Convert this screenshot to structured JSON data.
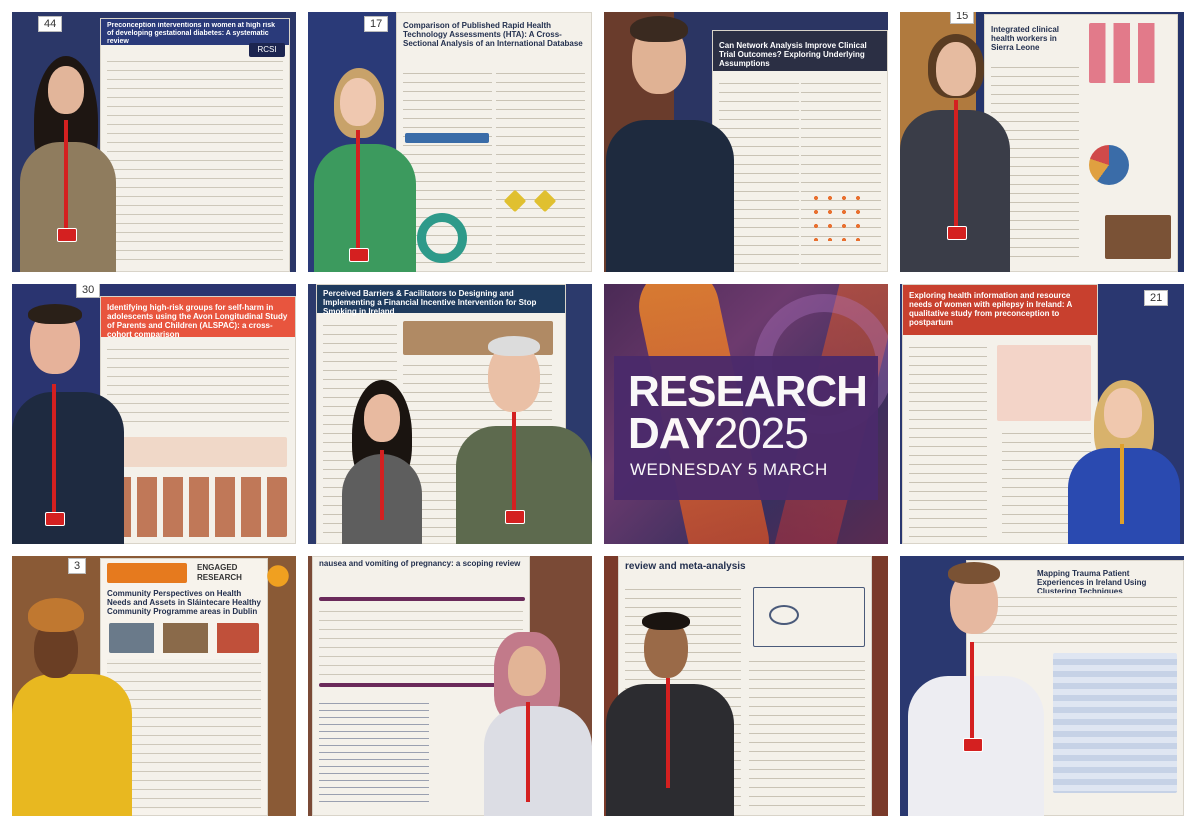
{
  "collage": {
    "event": {
      "title_line1": "RESEARCH",
      "title_line2_bold": "DAY",
      "title_line2_year": "2025",
      "date": "WEDNESDAY 5 MARCH"
    },
    "tiles": [
      {
        "board_number": "44",
        "poster_title": "Preconception interventions in women at high risk of developing gestational diabetes: A systematic review",
        "logo": "RCSI"
      },
      {
        "board_number": "17",
        "poster_title": "Comparison of Published Rapid Health Technology Assessments (HTA): A Cross-Sectional Analysis of an International Database"
      },
      {
        "board_number": "",
        "poster_title": "Can Network Analysis Improve Clinical Trial Outcomes? Exploring Underlying Assumptions"
      },
      {
        "board_number": "15",
        "poster_title": "Integrated clinical health workers in Sierra Leone"
      },
      {
        "board_number": "30",
        "poster_title": "Identifying high-risk groups for self-harm in adolescents using the Avon Longitudinal Study of Parents and Children (ALSPAC): a cross-cohort comparison"
      },
      {
        "board_number": "",
        "poster_title": "Perceived Barriers & Facilitators to Designing and Implementing a Financial Incentive Intervention for Stop Smoking in Ireland"
      },
      {
        "board_number": "",
        "poster_title": ""
      },
      {
        "board_number": "21",
        "poster_title": "Exploring health information and resource needs of women with epilepsy in Ireland: A qualitative study from preconception to postpartum"
      },
      {
        "board_number": "3",
        "poster_title": "Community Perspectives on Health Needs and Assets in Sláintecare Healthy Community Programme areas in Dublin",
        "label": "ENGAGED RESEARCH"
      },
      {
        "board_number": "",
        "poster_title": "nausea and vomiting of pregnancy: a scoping review"
      },
      {
        "board_number": "",
        "poster_title": "review and meta-analysis"
      },
      {
        "board_number": "",
        "poster_title": "Mapping Trauma Patient Experiences in Ireland Using Clustering Techniques"
      }
    ],
    "colors": {
      "board_blue": "#1f2d5c",
      "lanyard_red": "#d42020",
      "title_purple": "#4b2a6b",
      "accent_orange": "#f08a2a"
    }
  }
}
